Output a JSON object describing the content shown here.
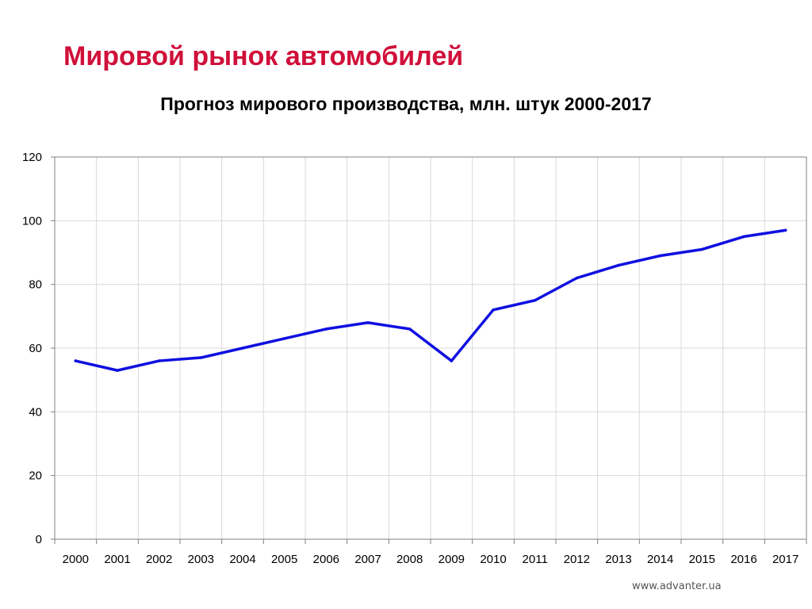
{
  "slide": {
    "title": "Мировой рынок автомобилей",
    "footer": "www.advanter.ua",
    "title_color": "#d0103a"
  },
  "chart_data": {
    "type": "line",
    "title": "Прогноз мирового производства, млн. штук 2000-2017",
    "xlabel": "",
    "ylabel": "",
    "categories": [
      "2000",
      "2001",
      "2002",
      "2003",
      "2004",
      "2005",
      "2006",
      "2007",
      "2008",
      "2009",
      "2010",
      "2011",
      "2012",
      "2013",
      "2014",
      "2015",
      "2016",
      "2017"
    ],
    "series": [
      {
        "values": [
          56,
          53,
          56,
          57,
          60,
          63,
          66,
          68,
          66,
          56,
          72,
          75,
          82,
          86,
          89,
          91,
          95,
          97
        ],
        "color": "#1010e0"
      }
    ],
    "ylim": [
      0,
      120
    ],
    "yticks": [
      0,
      20,
      40,
      60,
      80,
      100,
      120
    ],
    "grid": true,
    "legend": "none"
  }
}
